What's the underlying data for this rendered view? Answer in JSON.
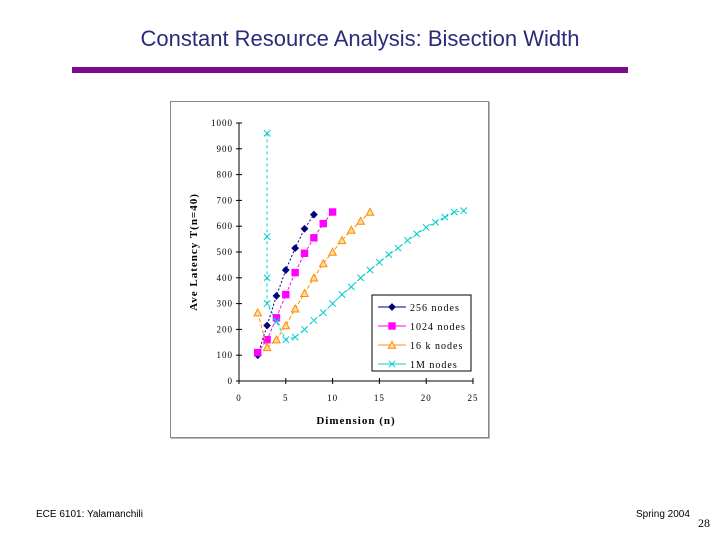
{
  "slide": {
    "title": "Constant Resource Analysis: Bisection Width",
    "footer_left": "ECE 6101: Yalamanchili",
    "footer_right": "Spring 2004",
    "page_number": "28"
  },
  "colors": {
    "title": "#2b2b7a",
    "rule": "#7b0b8a",
    "series_256": "#000080",
    "series_1024": "#ff00ff",
    "series_16k": "#ff8c00",
    "series_1M": "#00cccc"
  },
  "chart_data": {
    "type": "line",
    "xlabel": "Dimension (n)",
    "ylabel": "Ave Latency T(n=40)",
    "xlim": [
      0,
      25
    ],
    "ylim": [
      0,
      1000
    ],
    "x_ticks": [
      "0",
      "5",
      "10",
      "15",
      "20",
      "25"
    ],
    "y_ticks": [
      "0",
      "100",
      "200",
      "300",
      "400",
      "500",
      "600",
      "700",
      "800",
      "900",
      "1000"
    ],
    "legend_position": "bottom-right",
    "series": [
      {
        "name": "256 nodes",
        "marker": "diamond",
        "color": "#000080",
        "points": [
          [
            2,
            100
          ],
          [
            3,
            215
          ],
          [
            4,
            330
          ],
          [
            5,
            430
          ],
          [
            6,
            515
          ],
          [
            7,
            590
          ],
          [
            8,
            645
          ]
        ]
      },
      {
        "name": "1024 nodes",
        "marker": "square",
        "color": "#ff00ff",
        "points": [
          [
            2,
            110
          ],
          [
            3,
            160
          ],
          [
            4,
            245
          ],
          [
            5,
            335
          ],
          [
            6,
            420
          ],
          [
            7,
            495
          ],
          [
            8,
            555
          ],
          [
            9,
            610
          ],
          [
            10,
            655
          ]
        ]
      },
      {
        "name": "16 k nodes",
        "marker": "triangle",
        "color": "#ff8c00",
        "points": [
          [
            2,
            265
          ],
          [
            3,
            130
          ],
          [
            4,
            160
          ],
          [
            5,
            215
          ],
          [
            6,
            280
          ],
          [
            7,
            340
          ],
          [
            8,
            400
          ],
          [
            9,
            455
          ],
          [
            10,
            500
          ],
          [
            11,
            545
          ],
          [
            12,
            585
          ],
          [
            13,
            620
          ],
          [
            14,
            655
          ]
        ]
      },
      {
        "name": "1M nodes",
        "marker": "x",
        "color": "#00cccc",
        "points": [
          [
            3,
            960
          ],
          [
            3,
            560
          ],
          [
            3,
            400
          ],
          [
            3,
            300
          ],
          [
            4,
            230
          ],
          [
            5,
            160
          ],
          [
            6,
            170
          ],
          [
            7,
            200
          ],
          [
            8,
            235
          ],
          [
            9,
            265
          ],
          [
            10,
            300
          ],
          [
            11,
            335
          ],
          [
            12,
            365
          ],
          [
            13,
            400
          ],
          [
            14,
            430
          ],
          [
            15,
            460
          ],
          [
            16,
            490
          ],
          [
            17,
            515
          ],
          [
            18,
            545
          ],
          [
            19,
            570
          ],
          [
            20,
            595
          ],
          [
            21,
            615
          ],
          [
            22,
            635
          ],
          [
            23,
            655
          ],
          [
            24,
            660
          ]
        ]
      }
    ]
  }
}
